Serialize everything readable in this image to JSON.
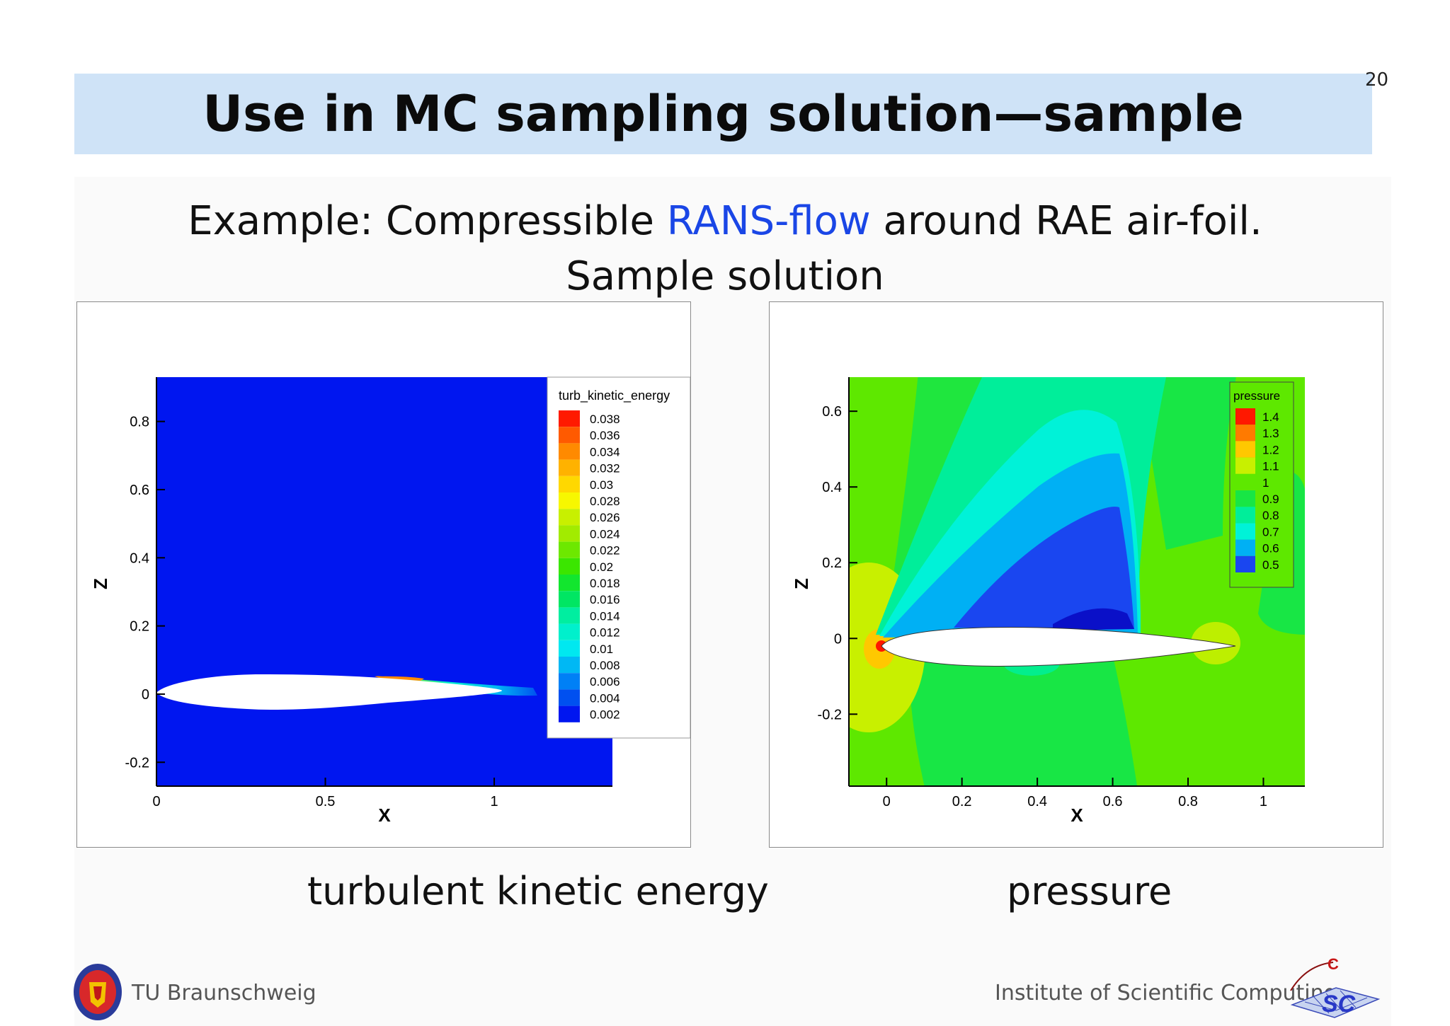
{
  "slide": {
    "title": "Use in MC sampling solution—sample",
    "page_number": "20",
    "subtitle_prefix": "Example: Compressible ",
    "subtitle_link": "RANS-flow",
    "subtitle_suffix": " around RAE air-foil.",
    "subtitle_line2": "Sample solution",
    "caption_left": "turbulent kinetic energy",
    "caption_right": "pressure"
  },
  "footer": {
    "left_text": "TU Braunschweig",
    "right_text": "Institute of Scientific Computing"
  },
  "colors": {
    "title_bar": "#cfe3f7",
    "link": "#1a46e6"
  },
  "chart_data": [
    {
      "type": "heatmap",
      "title": "",
      "xlabel": "X",
      "ylabel": "Z",
      "xlim": [
        0,
        1.35
      ],
      "ylim": [
        -0.27,
        0.93
      ],
      "xticks": [
        "0",
        "0.5",
        "1"
      ],
      "yticks": [
        "-0.2",
        "0",
        "0.2",
        "0.4",
        "0.6",
        "0.8"
      ],
      "legend": {
        "title": "turb_kinetic_energy",
        "placement": "top-right",
        "levels": [
          "0.038",
          "0.036",
          "0.034",
          "0.032",
          "0.03",
          "0.028",
          "0.026",
          "0.024",
          "0.022",
          "0.02",
          "0.018",
          "0.016",
          "0.014",
          "0.012",
          "0.01",
          "0.008",
          "0.006",
          "0.004",
          "0.002"
        ],
        "colors": [
          "#ff1a00",
          "#ff5a00",
          "#ff8a00",
          "#ffb200",
          "#ffd800",
          "#f7f700",
          "#c8f000",
          "#a2eb00",
          "#6de800",
          "#3be600",
          "#12e62e",
          "#00e663",
          "#00eea0",
          "#00f0cc",
          "#00e8f0",
          "#00b8f4",
          "#0080f6",
          "#0050f0",
          "#0016f0"
        ]
      }
    },
    {
      "type": "heatmap",
      "title": "",
      "xlabel": "X",
      "ylabel": "Z",
      "xlim": [
        -0.1,
        1.11
      ],
      "ylim": [
        -0.39,
        0.69
      ],
      "xticks": [
        "0",
        "0.2",
        "0.4",
        "0.6",
        "0.8",
        "1"
      ],
      "yticks": [
        "-0.2",
        "0",
        "0.2",
        "0.4",
        "0.6"
      ],
      "legend": {
        "title": "pressure",
        "placement": "top-right",
        "levels": [
          "1.4",
          "1.3",
          "1.2",
          "1.1",
          "1",
          "0.9",
          "0.8",
          "0.7",
          "0.6",
          "0.5"
        ],
        "colors": [
          "#ff1800",
          "#ff7a00",
          "#ffc800",
          "#c8f000",
          "#5ee800",
          "#18e645",
          "#00ee9a",
          "#00f2d8",
          "#00b0f4",
          "#1a46f0"
        ]
      }
    }
  ]
}
